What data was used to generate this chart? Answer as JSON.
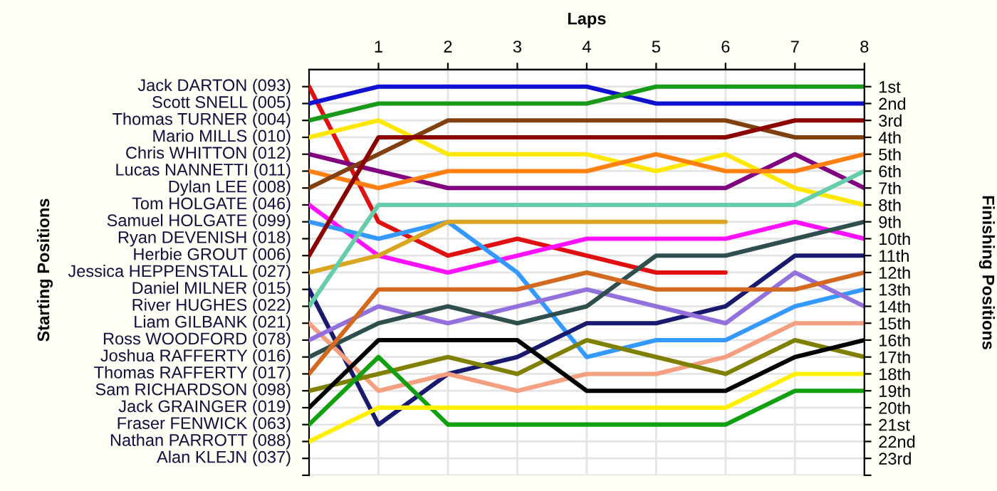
{
  "chart_data": {
    "type": "line",
    "xlabel": "Laps",
    "y2label": "Finishing Positions",
    "x": [
      0,
      1,
      2,
      3,
      4,
      5,
      6,
      7,
      8
    ],
    "xlim": [
      0,
      8
    ],
    "xticks": [
      1,
      2,
      3,
      4,
      5,
      6,
      7,
      8
    ],
    "y2lim": [
      24,
      0
    ],
    "y2ticks": [
      {
        "value": 1,
        "label": "1st"
      },
      {
        "value": 2,
        "label": "2nd"
      },
      {
        "value": 3,
        "label": "3rd"
      },
      {
        "value": 4,
        "label": "4th"
      },
      {
        "value": 5,
        "label": "5th"
      },
      {
        "value": 6,
        "label": "6th"
      },
      {
        "value": 7,
        "label": "7th"
      },
      {
        "value": 8,
        "label": "8th"
      },
      {
        "value": 9,
        "label": "9th"
      },
      {
        "value": 10,
        "label": "10th"
      },
      {
        "value": 11,
        "label": "11th"
      },
      {
        "value": 12,
        "label": "12th"
      },
      {
        "value": 13,
        "label": "13th"
      },
      {
        "value": 14,
        "label": "14th"
      },
      {
        "value": 15,
        "label": "15th"
      },
      {
        "value": 16,
        "label": "16th"
      },
      {
        "value": 17,
        "label": "17th"
      },
      {
        "value": 18,
        "label": "18th"
      },
      {
        "value": 19,
        "label": "19th"
      },
      {
        "value": 20,
        "label": "20th"
      },
      {
        "value": 21,
        "label": "21st"
      },
      {
        "value": 22,
        "label": "22nd"
      },
      {
        "value": 23,
        "label": "23rd"
      },
      {
        "value": 24,
        "label": null
      }
    ],
    "grid": true,
    "marker": "none",
    "line_style": "solid",
    "annotations": [
      "Starting Positions",
      "Jack DARTON (093)",
      "Scott SNELL (005)",
      "Thomas TURNER (004)",
      "Mario MILLS (010)",
      "Chris WHITTON (012)",
      "Lucas NANNETTI (011)",
      "Dylan LEE (008)",
      "Tom HOLGATE (046)",
      "Samuel HOLGATE (099)",
      "Ryan DEVENISH (018)",
      "Herbie GROUT (006)",
      "Jessica HEPPENSTALL (027)",
      "Daniel MILNER (015)",
      "River HUGHES (022)",
      "Liam GILBANK (021)",
      "Ross WOODFORD (078)",
      "Joshua RAFFERTY (016)",
      "Thomas RAFFERTY (017)",
      "Sam RICHARDSON (098)",
      "Jack GRAINGER (019)",
      "Fraser FENWICK (063)",
      "Nathan PARROTT (088)",
      "Alan KLEJN (037)"
    ],
    "series": [
      {
        "axis": "y2",
        "color": "#e01010",
        "values": [
          1,
          9,
          11,
          10,
          11,
          12,
          12,
          null,
          null
        ]
      },
      {
        "axis": "y2",
        "color": "#1010d0",
        "values": [
          2,
          1,
          1,
          1,
          1,
          2,
          2,
          2,
          2
        ]
      },
      {
        "axis": "y2",
        "color": "#189a18",
        "values": [
          3,
          2,
          2,
          2,
          2,
          1,
          1,
          1,
          1
        ]
      },
      {
        "axis": "y2",
        "color": "#ffe800",
        "values": [
          4,
          3,
          5,
          5,
          5,
          6,
          5,
          7,
          8
        ]
      },
      {
        "axis": "y2",
        "color": "#800080",
        "values": [
          5,
          6,
          7,
          7,
          7,
          7,
          7,
          5,
          7
        ]
      },
      {
        "axis": "y2",
        "color": "#ff8010",
        "values": [
          6,
          7,
          6,
          6,
          6,
          5,
          6,
          6,
          5
        ]
      },
      {
        "axis": "y2",
        "color": "#804010",
        "values": [
          7,
          5,
          3,
          3,
          3,
          3,
          3,
          4,
          4
        ]
      },
      {
        "axis": "y2",
        "color": "#ff10ff",
        "values": [
          8,
          11,
          12,
          11,
          10,
          10,
          10,
          9,
          10
        ]
      },
      {
        "axis": "y2",
        "color": "#3399ff",
        "values": [
          9,
          10,
          9,
          12,
          17,
          16,
          16,
          14,
          13
        ]
      },
      {
        "axis": "y2",
        "color": "#8b0000",
        "values": [
          11,
          4,
          4,
          4,
          4,
          4,
          4,
          3,
          3
        ]
      },
      {
        "axis": "y2",
        "color": "#daa520",
        "values": [
          12,
          11,
          9,
          9,
          9,
          9,
          9,
          null,
          null
        ]
      },
      {
        "axis": "y2",
        "color": "#191970",
        "values": [
          13,
          21,
          18,
          17,
          15,
          15,
          14,
          11,
          11
        ]
      },
      {
        "axis": "y2",
        "color": "#66cdaa",
        "values": [
          14,
          8,
          8,
          8,
          8,
          8,
          8,
          8,
          6
        ]
      },
      {
        "axis": "y2",
        "color": "#f4a080",
        "values": [
          15,
          19,
          18,
          19,
          18,
          18,
          17,
          15,
          15
        ]
      },
      {
        "axis": "y2",
        "color": "#9370db",
        "values": [
          16,
          14,
          15,
          14,
          13,
          14,
          15,
          12,
          14
        ]
      },
      {
        "axis": "y2",
        "color": "#2f4f4f",
        "values": [
          17,
          15,
          14,
          15,
          14,
          11,
          11,
          10,
          9
        ]
      },
      {
        "axis": "y2",
        "color": "#d2691e",
        "values": [
          18,
          13,
          13,
          13,
          12,
          13,
          13,
          13,
          12
        ]
      },
      {
        "axis": "y2",
        "color": "#808000",
        "values": [
          19,
          18,
          17,
          18,
          16,
          17,
          18,
          16,
          17
        ]
      },
      {
        "axis": "y2",
        "color": "#000000",
        "values": [
          20,
          16,
          16,
          16,
          19,
          19,
          19,
          17,
          16
        ]
      },
      {
        "axis": "y2",
        "color": "#10a010",
        "values": [
          21,
          17,
          21,
          21,
          21,
          21,
          21,
          19,
          19
        ]
      },
      {
        "axis": "y2",
        "color": "#fff000",
        "values": [
          22,
          20,
          20,
          20,
          20,
          20,
          20,
          18,
          18
        ]
      }
    ]
  }
}
